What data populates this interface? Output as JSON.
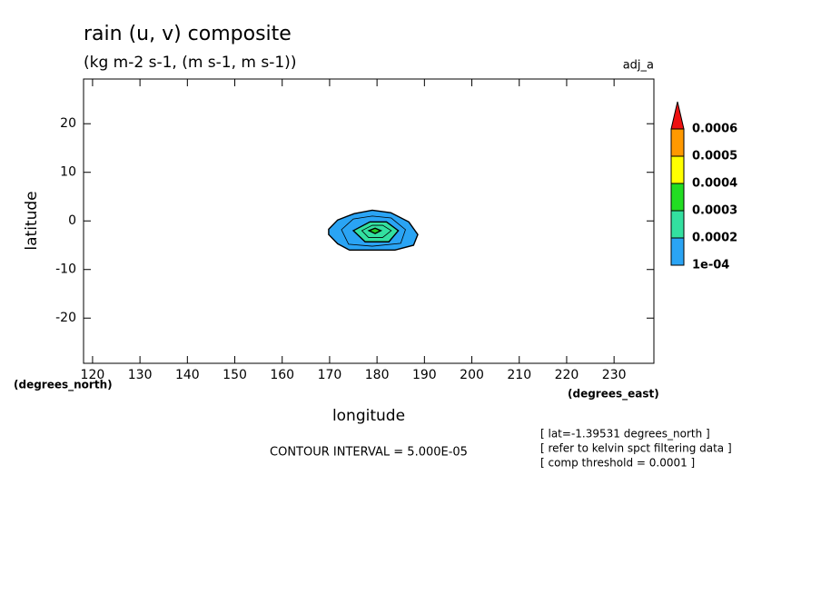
{
  "chart_data": {
    "type": "contour",
    "title": "rain (u, v) composite",
    "subtitle": "(kg m-2 s-1, (m s-1, m s-1))",
    "dataset": "adj_a",
    "x_label": "longitude",
    "y_label": "latitude",
    "x_units": "(degrees_east)",
    "y_units": "(degrees_north)",
    "xlim": [
      118.1,
      238.4
    ],
    "ylim": [
      -29.3,
      29.2
    ],
    "xticks": [
      120,
      130,
      140,
      150,
      160,
      170,
      180,
      190,
      200,
      210,
      220,
      230
    ],
    "yticks": [
      20,
      10,
      0,
      -10,
      -20
    ],
    "regions": [
      {
        "level": 0.0001,
        "color": "#2aa4f4",
        "points": [
          [
            169.8,
            -1.7
          ],
          [
            171.7,
            0.2
          ],
          [
            175.2,
            1.5
          ],
          [
            179.0,
            2.2
          ],
          [
            182.9,
            1.7
          ],
          [
            186.7,
            -0.2
          ],
          [
            188.6,
            -2.8
          ],
          [
            187.7,
            -5.0
          ],
          [
            183.8,
            -6.0
          ],
          [
            179.0,
            -6.0
          ],
          [
            174.2,
            -6.0
          ],
          [
            171.7,
            -4.7
          ],
          [
            169.8,
            -2.8
          ]
        ]
      },
      {
        "level": 0.00015,
        "color": null,
        "points": [
          [
            172.5,
            -1.8
          ],
          [
            175.0,
            0.4
          ],
          [
            179.0,
            1.0
          ],
          [
            183.0,
            0.6
          ],
          [
            186.0,
            -1.8
          ],
          [
            185.0,
            -4.6
          ],
          [
            179.0,
            -5.2
          ],
          [
            174.0,
            -4.8
          ]
        ]
      },
      {
        "level": 0.0002,
        "color": "#33e0a0",
        "points": [
          [
            175.0,
            -2.0
          ],
          [
            178.5,
            -0.2
          ],
          [
            182.0,
            -0.2
          ],
          [
            184.5,
            -2.0
          ],
          [
            182.5,
            -4.3
          ],
          [
            177.5,
            -4.3
          ]
        ]
      },
      {
        "level": 0.00025,
        "color": null,
        "points": [
          [
            176.8,
            -2.0
          ],
          [
            179.0,
            -0.9
          ],
          [
            181.2,
            -0.9
          ],
          [
            183.0,
            -2.0
          ],
          [
            181.2,
            -3.4
          ],
          [
            178.2,
            -3.4
          ]
        ]
      },
      {
        "level": 0.0003,
        "color": "#22cc22",
        "points": [
          [
            178.3,
            -2.0
          ],
          [
            179.6,
            -1.5
          ],
          [
            180.8,
            -2.0
          ],
          [
            179.6,
            -2.6
          ]
        ]
      }
    ],
    "colorbar": {
      "ticks": [
        {
          "value": 0.0001,
          "label": "1e-04"
        },
        0.0002,
        0.0003,
        0.0004,
        0.0005,
        0.0006
      ],
      "colors": [
        "#2aa4f4",
        "#33e0a0",
        "#22dd22",
        "#ffff00",
        "#ff9900",
        "#ee1111"
      ]
    },
    "contour_interval": "CONTOUR INTERVAL = 5.000E-05",
    "notes": [
      "[ lat=-1.39531 degrees_north ]",
      "[ refer to kelvin spct filtering data ]",
      "[ comp threshold = 0.0001 ]"
    ]
  }
}
